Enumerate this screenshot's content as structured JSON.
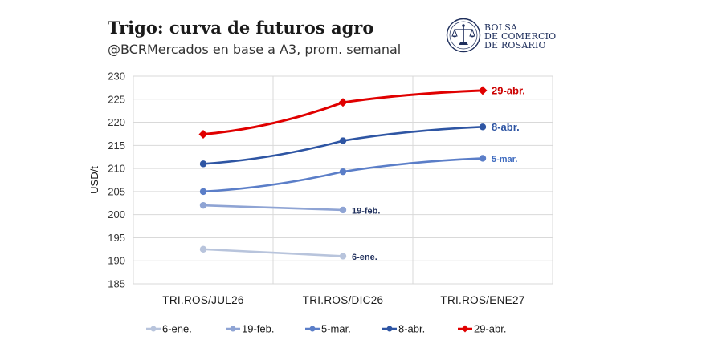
{
  "header": {
    "title": "Trigo: curva de futuros agro",
    "subtitle": "@BCRMercados en base a A3, prom. semanal"
  },
  "logo": {
    "line1": "BOLSA",
    "line2": "DE COMERCIO",
    "line3": "DE ROSARIO",
    "icon": "scales-of-justice-emblem-icon",
    "color": "#1f2f5c"
  },
  "chart_data": {
    "type": "line",
    "title": "Trigo: curva de futuros agro",
    "subtitle": "@BCRMercados en base a A3, prom. semanal",
    "xlabel": "",
    "ylabel": "USD/t",
    "categories": [
      "TRI.ROS/JUL26",
      "TRI.ROS/DIC26",
      "TRI.ROS/ENE27"
    ],
    "ylim": [
      185,
      230
    ],
    "yticks": [
      185,
      190,
      195,
      200,
      205,
      210,
      215,
      220,
      225,
      230
    ],
    "grid": true,
    "legend_position": "bottom",
    "series": [
      {
        "name": "6-ene.",
        "values": [
          192.5,
          191.0,
          null
        ],
        "color": "#b8c4dc",
        "marker": "circle",
        "label": "6-ene.",
        "label_color": "#1f2f5c"
      },
      {
        "name": "19-feb.",
        "values": [
          202.0,
          201.0,
          null
        ],
        "color": "#8fa4d4",
        "marker": "circle",
        "label": "19-feb.",
        "label_color": "#1f2f5c"
      },
      {
        "name": "5-mar.",
        "values": [
          205.0,
          209.3,
          212.2
        ],
        "color": "#5b7ec8",
        "marker": "circle",
        "label": "5-mar.",
        "label_color": "#3f6bbf"
      },
      {
        "name": "8-abr.",
        "values": [
          211.0,
          216.0,
          219.0
        ],
        "color": "#2e55a3",
        "marker": "circle",
        "label": "8-abr.",
        "label_color": "#2e55a3"
      },
      {
        "name": "29-abr.",
        "values": [
          217.4,
          224.3,
          226.9
        ],
        "color": "#e00000",
        "marker": "diamond",
        "label": "29-abr.",
        "label_color": "#cc0000"
      }
    ]
  }
}
